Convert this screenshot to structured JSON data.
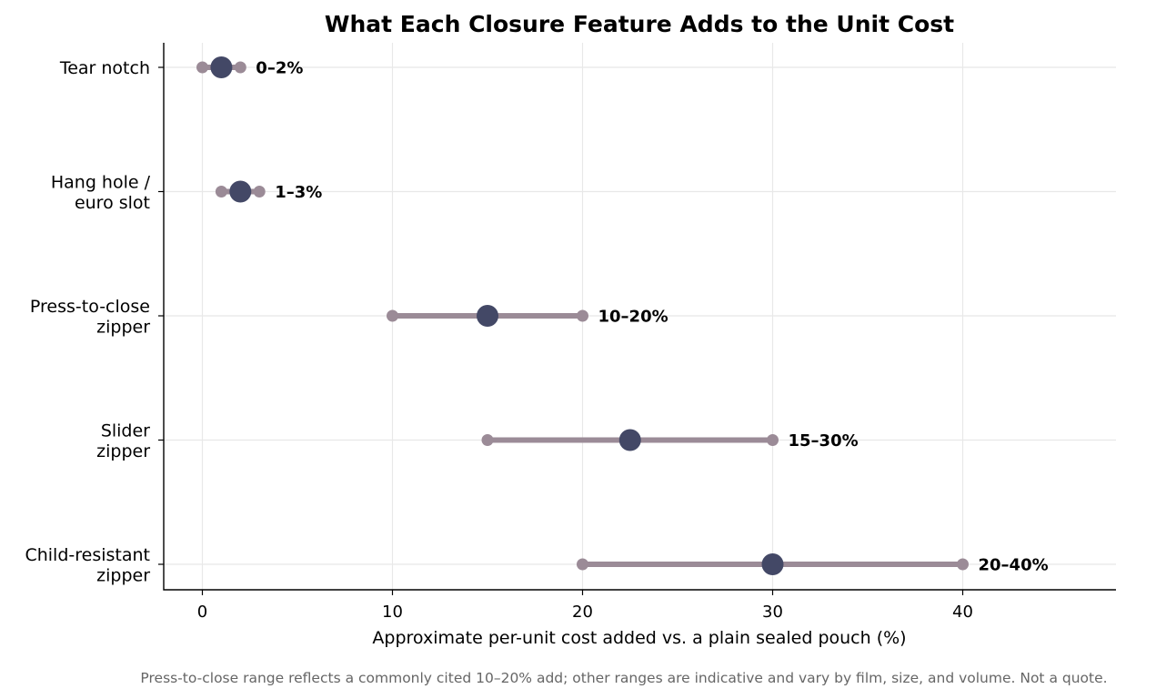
{
  "chart_data": {
    "type": "dumbbell",
    "title": "What Each Closure Feature Adds to the Unit Cost",
    "xlabel": "Approximate per-unit cost added vs. a plain sealed pouch (%)",
    "ylabel": "",
    "xlim": [
      -2,
      48
    ],
    "xticks": [
      0,
      10,
      20,
      30,
      40
    ],
    "grid": true,
    "colors": {
      "range": "#9b8b97",
      "midpoint": "#434866"
    },
    "items": [
      {
        "label_lines": [
          "Tear notch"
        ],
        "low": 0,
        "high": 2,
        "mid": 1,
        "range_label": "0–2%"
      },
      {
        "label_lines": [
          "Hang hole /",
          "euro slot"
        ],
        "low": 1,
        "high": 3,
        "mid": 2,
        "range_label": "1–3%"
      },
      {
        "label_lines": [
          "Press-to-close",
          "zipper"
        ],
        "low": 10,
        "high": 20,
        "mid": 15,
        "range_label": "10–20%"
      },
      {
        "label_lines": [
          "Slider",
          "zipper"
        ],
        "low": 15,
        "high": 30,
        "mid": 22.5,
        "range_label": "15–30%"
      },
      {
        "label_lines": [
          "Child-resistant",
          "zipper"
        ],
        "low": 20,
        "high": 40,
        "mid": 30,
        "range_label": "20–40%"
      }
    ],
    "footnote": "Press-to-close range reflects a commonly cited 10–20% add; other ranges are indicative and vary by film, size, and volume. Not a quote."
  }
}
